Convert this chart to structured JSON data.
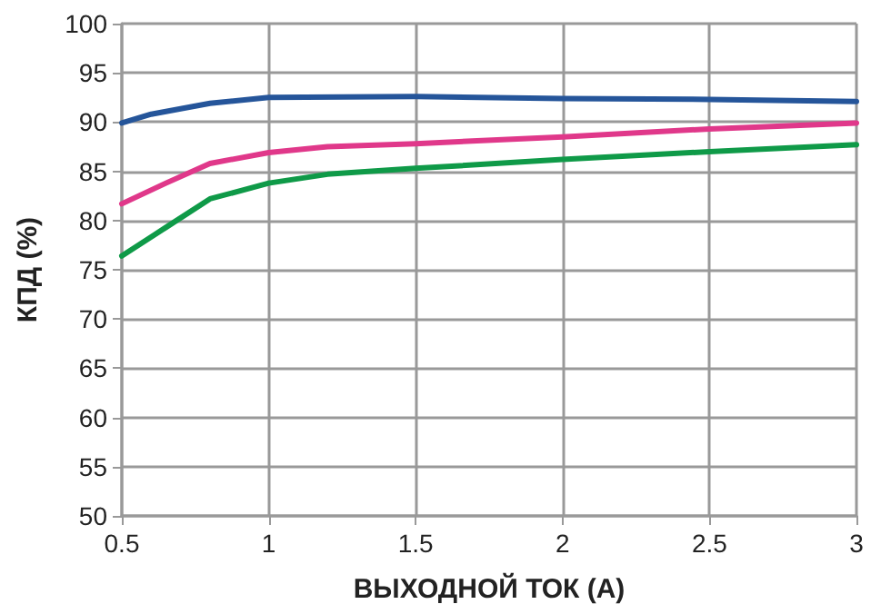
{
  "chart_data": {
    "type": "line",
    "xlabel": "ВЫХОДНОЙ ТОК (А)",
    "ylabel": "КПД (%)",
    "xlim": [
      0.5,
      3
    ],
    "xticks": [
      0.5,
      1,
      1.5,
      2,
      2.5,
      3
    ],
    "ylim": [
      50,
      100
    ],
    "yticks": [
      50,
      55,
      60,
      65,
      70,
      75,
      80,
      85,
      90,
      95,
      100
    ],
    "grid": true,
    "marker": "none",
    "line_style": "solid",
    "series": [
      {
        "color": "#25559a",
        "x": [
          0.5,
          0.6,
          0.8,
          1.0,
          1.5,
          2,
          2.5,
          3
        ],
        "values": [
          89.9,
          90.8,
          91.9,
          92.5,
          92.6,
          92.4,
          92.3,
          92.1
        ]
      },
      {
        "color": "#e0388a",
        "x": [
          0.5,
          0.65,
          0.8,
          1.0,
          1.2,
          1.5,
          2,
          2.5,
          3
        ],
        "values": [
          81.7,
          83.8,
          85.8,
          86.9,
          87.5,
          87.8,
          88.5,
          89.3,
          89.9
        ]
      },
      {
        "color": "#0f9a48",
        "x": [
          0.5,
          0.65,
          0.8,
          1.0,
          1.2,
          1.5,
          2,
          2.5,
          3
        ],
        "values": [
          76.4,
          79.3,
          82.2,
          83.8,
          84.7,
          85.3,
          86.2,
          87.0,
          87.7
        ]
      }
    ]
  }
}
